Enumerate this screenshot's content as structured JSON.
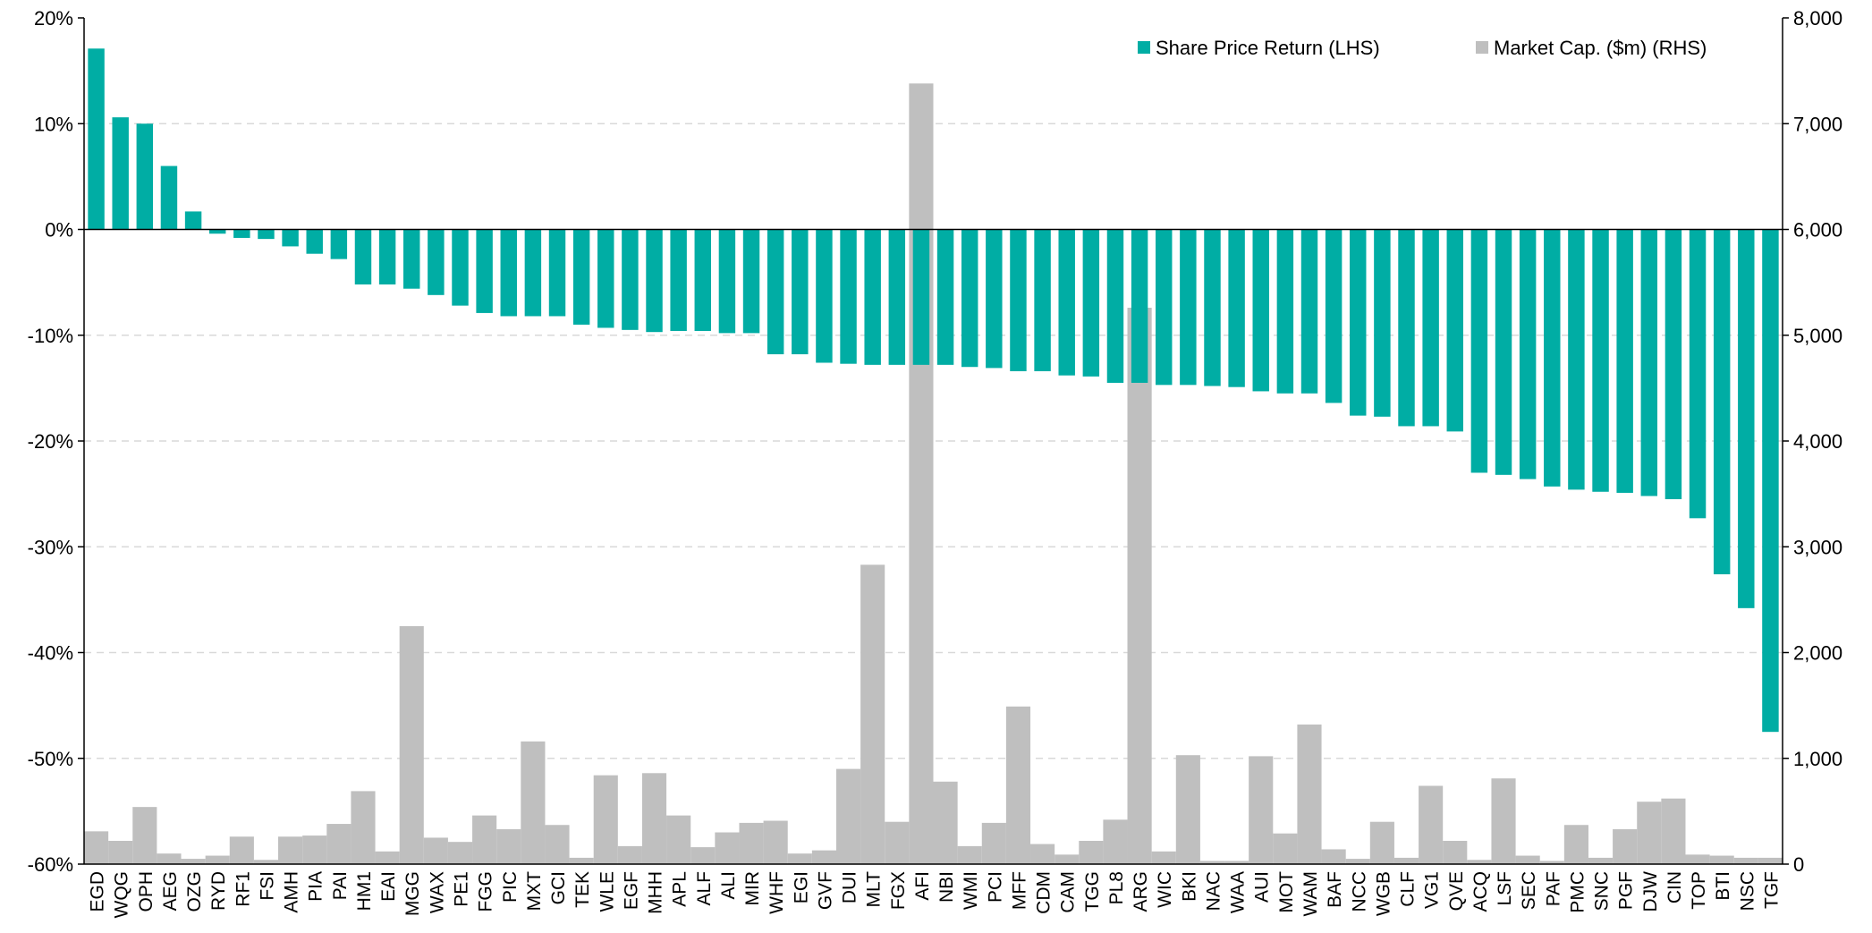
{
  "chart_data": {
    "type": "bar",
    "categories": [
      "EGD",
      "WQG",
      "OPH",
      "AEG",
      "OZG",
      "RYD",
      "RF1",
      "FSI",
      "AMH",
      "PIA",
      "PAI",
      "HM1",
      "EAI",
      "MGG",
      "WAX",
      "PE1",
      "FGG",
      "PIC",
      "MXT",
      "GCI",
      "TEK",
      "WLE",
      "EGF",
      "MHH",
      "APL",
      "ALF",
      "ALI",
      "MIR",
      "WHF",
      "EGI",
      "GVF",
      "DUI",
      "MLT",
      "FGX",
      "AFI",
      "NBI",
      "WMI",
      "PCI",
      "MFF",
      "CDM",
      "CAM",
      "TGG",
      "PL8",
      "ARG",
      "WIC",
      "BKI",
      "NAC",
      "WAA",
      "AUI",
      "MOT",
      "WAM",
      "BAF",
      "NCC",
      "WGB",
      "CLF",
      "VG1",
      "QVE",
      "ACQ",
      "LSF",
      "SEC",
      "PAF",
      "PMC",
      "SNC",
      "PGF",
      "DJW",
      "CIN",
      "TOP",
      "BTI",
      "NSC",
      "TGF"
    ],
    "series": [
      {
        "name": "Share Price Return (LHS)",
        "axis": "left",
        "color": "#00ADA4",
        "values": [
          17.1,
          10.6,
          10.0,
          6.0,
          1.7,
          -0.4,
          -0.8,
          -0.9,
          -1.6,
          -2.3,
          -2.8,
          -5.2,
          -5.2,
          -5.6,
          -6.2,
          -7.2,
          -7.9,
          -8.2,
          -8.2,
          -8.2,
          -9.0,
          -9.3,
          -9.5,
          -9.7,
          -9.6,
          -9.6,
          -9.8,
          -9.8,
          -11.8,
          -11.8,
          -12.6,
          -12.7,
          -12.8,
          -12.8,
          -12.8,
          -12.8,
          -13.0,
          -13.1,
          -13.4,
          -13.4,
          -13.8,
          -13.9,
          -14.5,
          -14.5,
          -14.7,
          -14.7,
          -14.8,
          -14.9,
          -15.3,
          -15.5,
          -15.5,
          -16.4,
          -17.6,
          -17.7,
          -18.6,
          -18.6,
          -19.1,
          -23.0,
          -23.2,
          -23.6,
          -24.3,
          -24.6,
          -24.8,
          -24.9,
          -25.2,
          -25.5,
          -27.3,
          -32.6,
          -35.8,
          -47.5
        ]
      },
      {
        "name": "Market Cap. ($m) (RHS)",
        "axis": "right",
        "color": "#BFBFBF",
        "values": [
          310,
          220,
          540,
          100,
          50,
          80,
          260,
          40,
          260,
          270,
          380,
          690,
          120,
          2250,
          250,
          210,
          460,
          330,
          1160,
          370,
          60,
          840,
          170,
          860,
          460,
          160,
          300,
          390,
          410,
          100,
          130,
          900,
          2830,
          400,
          7380,
          780,
          170,
          390,
          1490,
          190,
          90,
          220,
          420,
          5260,
          120,
          1030,
          30,
          30,
          1020,
          290,
          1320,
          140,
          50,
          400,
          60,
          740,
          220,
          40,
          810,
          80,
          30,
          370,
          60,
          330,
          590,
          620,
          90,
          80,
          60,
          60
        ]
      }
    ],
    "left_axis": {
      "min": -60,
      "max": 20,
      "step": 10,
      "suffix": "%"
    },
    "right_axis": {
      "min": 0,
      "max": 8000,
      "step": 1000
    },
    "left_tick_labels": [
      "20%",
      "10%",
      "0%",
      "-10%",
      "-20%",
      "-30%",
      "-40%",
      "-50%",
      "-60%"
    ],
    "right_tick_labels": [
      "8,000",
      "7,000",
      "6,000",
      "5,000",
      "4,000",
      "3,000",
      "2,000",
      "1,000",
      "0"
    ],
    "legend": {
      "position": "top-right",
      "items": [
        {
          "label": "Share Price Return (LHS)",
          "color": "#00ADA4"
        },
        {
          "label": "Market Cap. ($m) (RHS)",
          "color": "#BFBFBF"
        }
      ]
    },
    "grid": true,
    "gridline_color": "#D9D9D9",
    "title": "",
    "xlabel": "",
    "ylabel": ""
  }
}
